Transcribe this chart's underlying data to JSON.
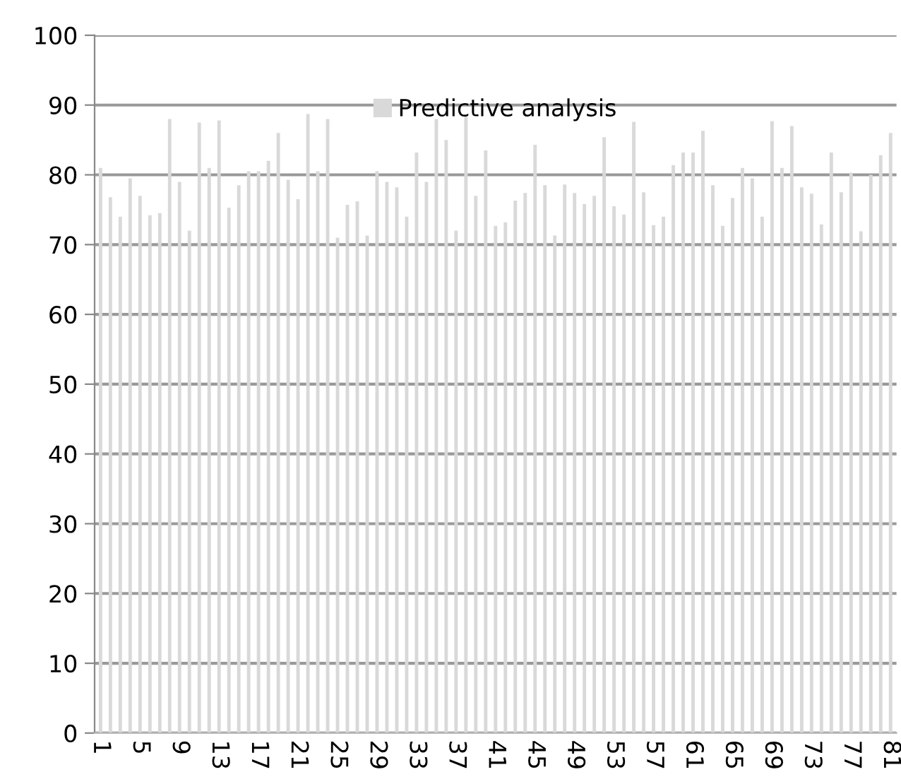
{
  "chart_data": {
    "type": "bar",
    "categories": [
      "1",
      null,
      null,
      null,
      "5",
      null,
      null,
      null,
      "9",
      null,
      null,
      null,
      "13",
      null,
      null,
      null,
      "17",
      null,
      null,
      null,
      "21",
      null,
      null,
      null,
      "25",
      null,
      null,
      null,
      "29",
      null,
      null,
      null,
      "33",
      null,
      null,
      null,
      "37",
      null,
      null,
      null,
      "41",
      null,
      null,
      null,
      "45",
      null,
      null,
      null,
      "49",
      null,
      null,
      null,
      "53",
      null,
      null,
      null,
      "57",
      null,
      null,
      null,
      "61",
      null,
      null,
      null,
      "65",
      null,
      null,
      null,
      "69",
      null,
      null,
      null,
      "73",
      null,
      null,
      null,
      "77",
      null,
      null,
      null,
      "81"
    ],
    "series": [
      {
        "name": "Predictive analysis",
        "color": "#d9d9d9",
        "values": [
          81,
          76.8,
          74,
          79.5,
          77,
          74.2,
          74.5,
          88,
          79,
          72,
          87.5,
          81,
          87.8,
          75.3,
          78.5,
          80.5,
          80.5,
          82,
          86,
          79.3,
          76.5,
          88.7,
          80.5,
          88,
          71,
          75.7,
          76.2,
          71.3,
          80.5,
          79,
          78.2,
          74,
          83.2,
          79,
          88,
          85,
          72,
          88.7,
          77,
          83.5,
          72.7,
          73.2,
          76.3,
          77.4,
          84.3,
          78.5,
          71.3,
          78.6,
          77.4,
          75.8,
          77,
          85.4,
          75.5,
          74.3,
          87.6,
          77.5,
          72.8,
          74,
          81.4,
          83.2,
          83.2,
          86.3,
          78.5,
          72.7,
          76.7,
          81,
          79.5,
          74,
          87.7,
          81,
          87,
          78.2,
          77.3,
          72.9,
          83.2,
          77.5,
          80.3,
          71.9,
          80,
          82.8,
          86
        ]
      }
    ],
    "ylim": [
      0,
      100
    ],
    "yticks": [
      0,
      10,
      20,
      30,
      40,
      50,
      60,
      70,
      80,
      90,
      100
    ],
    "grid": "y",
    "legend": "top"
  }
}
